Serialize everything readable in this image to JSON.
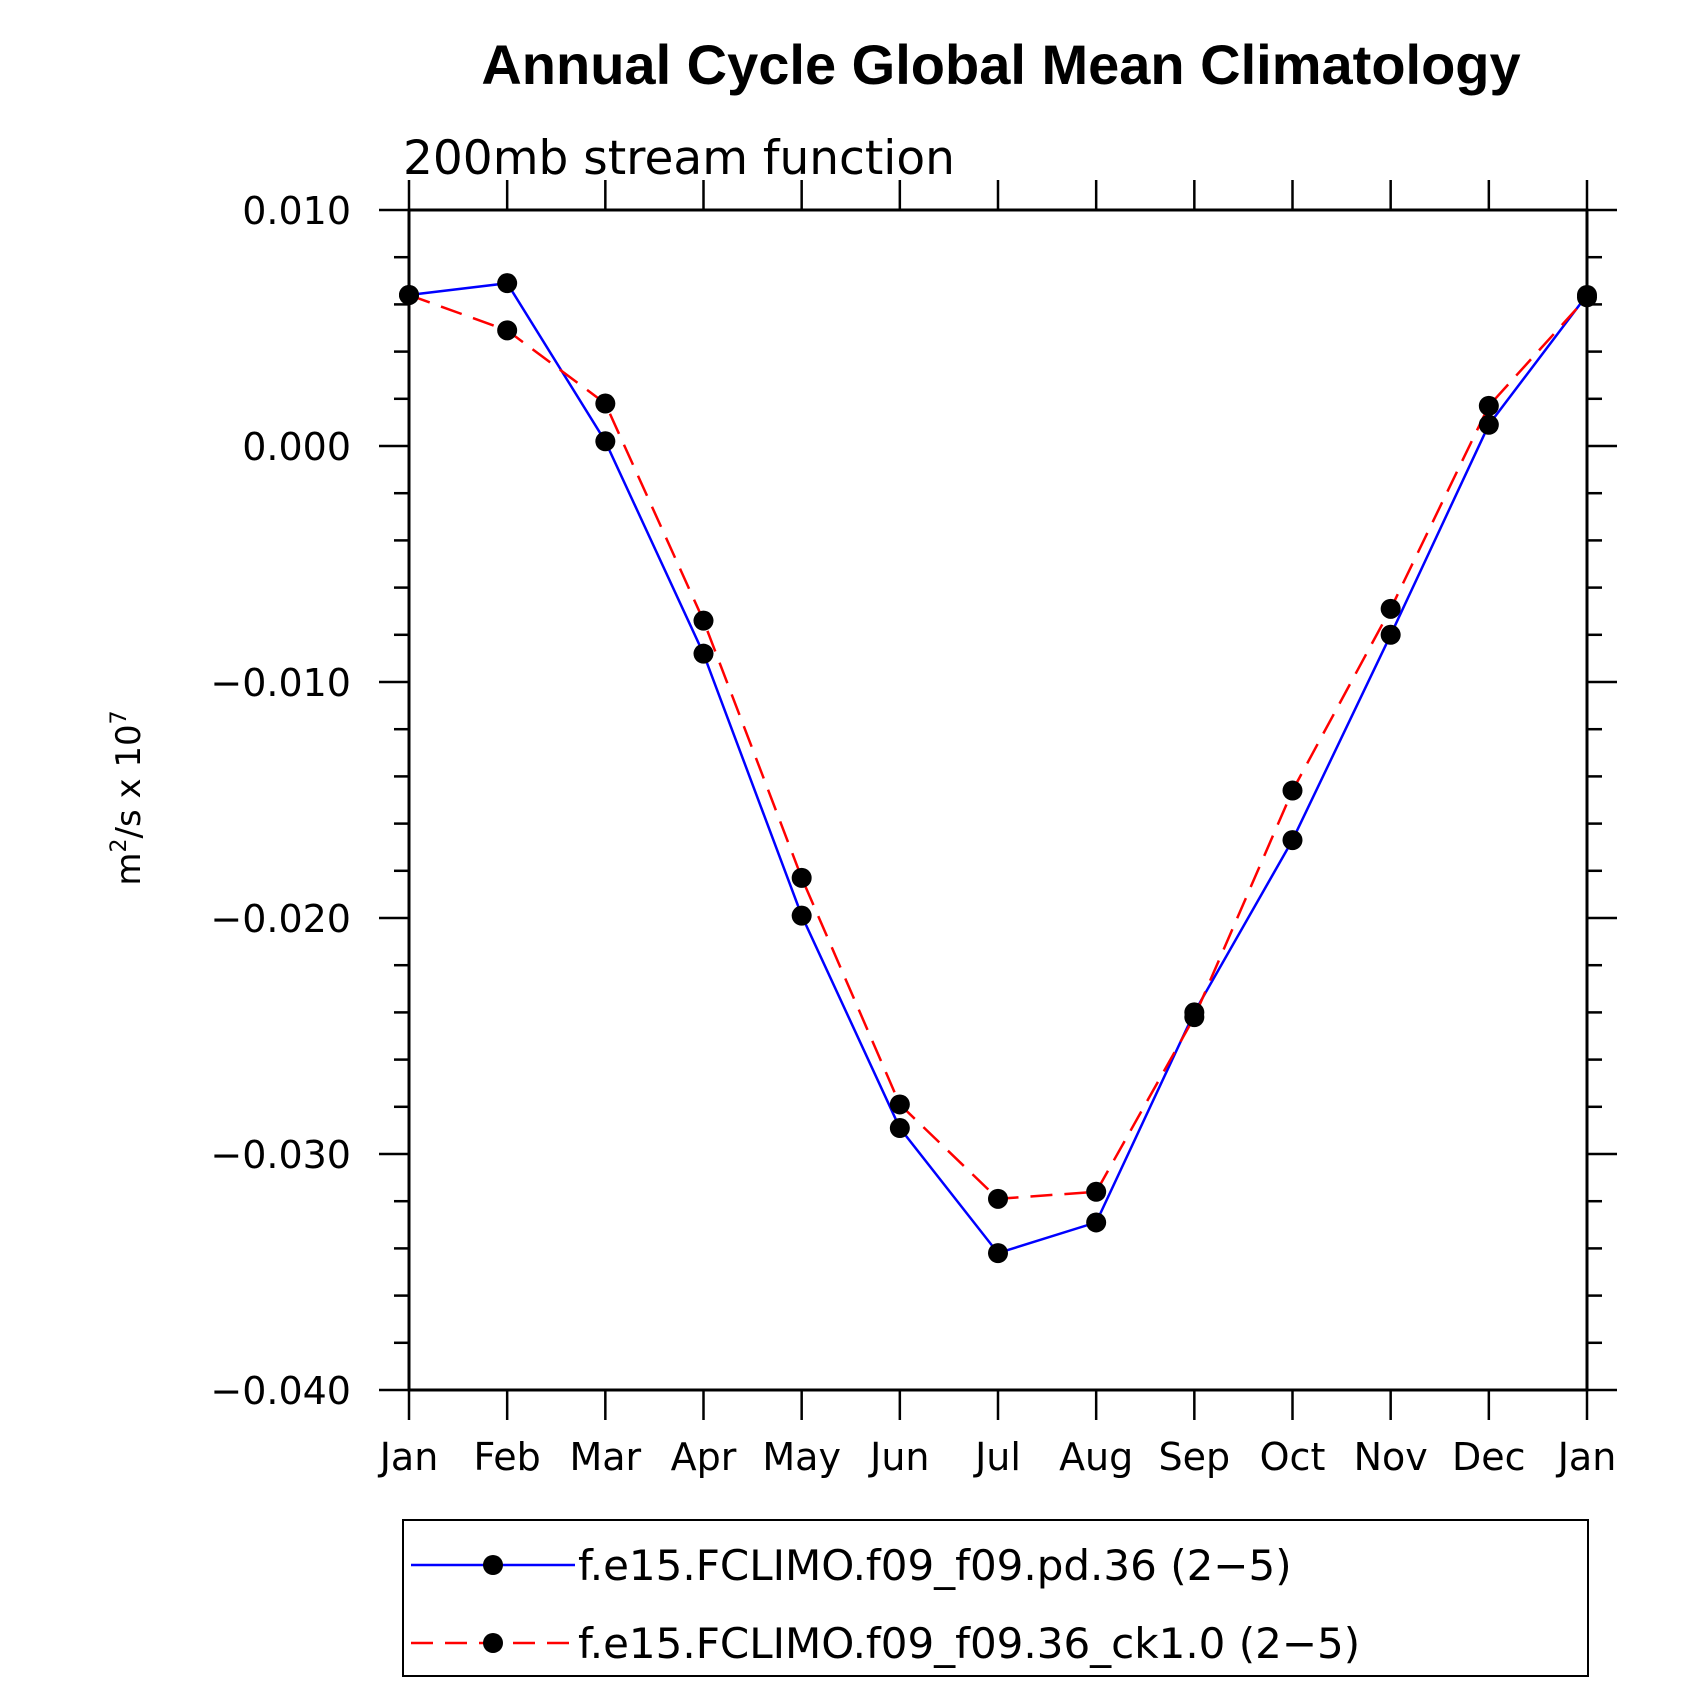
{
  "chart_data": {
    "type": "line",
    "title": "Annual Cycle Global Mean Climatology",
    "subtitle": "200mb stream function",
    "ylabel_base": "m",
    "ylabel_exp": "2",
    "ylabel_mid": "/s x 10",
    "ylabel_exp2": "7",
    "xlabel": "",
    "ylim": [
      -0.04,
      0.01
    ],
    "yticks": [
      {
        "value": 0.01,
        "label": "0.010"
      },
      {
        "value": 0.0,
        "label": "0.000"
      },
      {
        "value": -0.01,
        "label": "−0.010"
      },
      {
        "value": -0.02,
        "label": "−0.020"
      },
      {
        "value": -0.03,
        "label": "−0.030"
      },
      {
        "value": -0.04,
        "label": "−0.040"
      }
    ],
    "categories": [
      "Jan",
      "Feb",
      "Mar",
      "Apr",
      "May",
      "Jun",
      "Jul",
      "Aug",
      "Sep",
      "Oct",
      "Nov",
      "Dec",
      "Jan"
    ],
    "series": [
      {
        "name": "f.e15.FCLIMO.f09_f09.pd.36 (2−5)",
        "color": "#0000ff",
        "dash": "solid",
        "values": [
          0.0064,
          0.0069,
          0.0002,
          -0.0088,
          -0.0199,
          -0.0289,
          -0.0342,
          -0.0329,
          -0.024,
          -0.0167,
          -0.008,
          0.0009,
          0.0064
        ]
      },
      {
        "name": "f.e15.FCLIMO.f09_f09.36_ck1.0 (2−5)",
        "color": "#ff0000",
        "dash": "dashed",
        "values": [
          0.0064,
          0.0049,
          0.0018,
          -0.0074,
          -0.0183,
          -0.0279,
          -0.0319,
          -0.0316,
          -0.0242,
          -0.0146,
          -0.0069,
          0.0017,
          0.0063
        ]
      }
    ],
    "legend_position": "bottom"
  }
}
